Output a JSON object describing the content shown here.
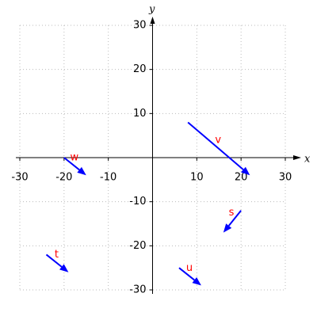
{
  "chart_data": {
    "type": "vector",
    "xlabel": "x",
    "ylabel": "y",
    "xlim": [
      -30,
      30
    ],
    "ylim": [
      -30,
      30
    ],
    "xticks": [
      -30,
      -20,
      -10,
      10,
      20,
      30
    ],
    "yticks": [
      -30,
      -20,
      -10,
      10,
      20,
      30
    ],
    "grid": true,
    "color": "#0000ff",
    "label_color": "#ff0000",
    "vectors": [
      {
        "name": "v",
        "x0": 8,
        "y0": 8,
        "x1": 22,
        "y1": -4
      },
      {
        "name": "w",
        "x0": -20,
        "y0": 0,
        "x1": -15,
        "y1": -4
      },
      {
        "name": "s",
        "x0": 20,
        "y0": -12,
        "x1": 16,
        "y1": -17
      },
      {
        "name": "t",
        "x0": -24,
        "y0": -22,
        "x1": -19,
        "y1": -26
      },
      {
        "name": "u",
        "x0": 6,
        "y0": -25,
        "x1": 11,
        "y1": -29
      }
    ]
  }
}
